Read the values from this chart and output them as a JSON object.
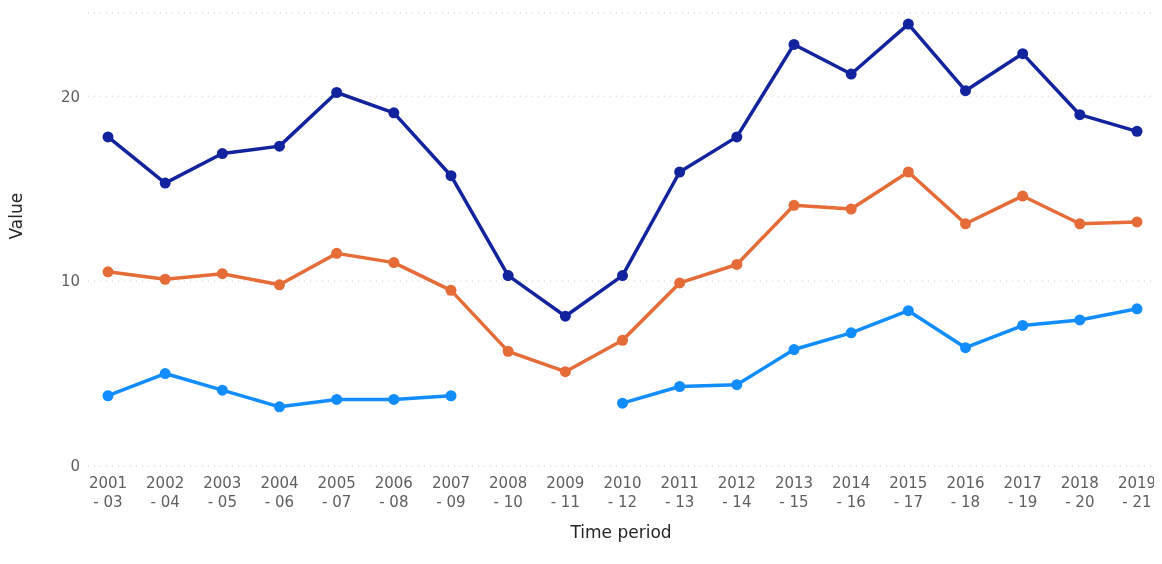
{
  "chart_data": {
    "type": "line",
    "xlabel": "Time period",
    "ylabel": "Value",
    "categories": [
      "2001 - 03",
      "2002 - 04",
      "2003 - 05",
      "2004 - 06",
      "2005 - 07",
      "2006 - 08",
      "2007 - 09",
      "2008 - 10",
      "2009 - 11",
      "2010 - 12",
      "2011 - 13",
      "2012 - 14",
      "2013 - 15",
      "2014 - 16",
      "2015 - 17",
      "2016 - 18",
      "2017 - 19",
      "2018 - 20",
      "2019 - 21"
    ],
    "series": [
      {
        "color": "#12239e",
        "values": [
          17.8,
          15.3,
          16.9,
          17.3,
          20.2,
          19.1,
          15.7,
          10.3,
          8.1,
          10.3,
          15.9,
          17.8,
          22.8,
          21.2,
          23.9,
          20.3,
          22.3,
          19.0,
          18.1
        ]
      },
      {
        "color": "#e66c37",
        "values": [
          10.5,
          10.1,
          10.4,
          9.8,
          11.5,
          11.0,
          9.5,
          6.2,
          5.1,
          6.8,
          9.9,
          10.9,
          14.1,
          13.9,
          15.9,
          13.1,
          14.6,
          13.1,
          13.2
        ]
      },
      {
        "color": "#118dff",
        "values": [
          3.8,
          5.0,
          4.1,
          3.2,
          3.6,
          3.6,
          3.8,
          null,
          null,
          3.4,
          4.3,
          4.4,
          6.3,
          7.2,
          8.4,
          6.4,
          7.6,
          7.9,
          8.5
        ]
      }
    ],
    "ylim": [
      0,
      24.5
    ],
    "yticks": [
      0,
      10,
      20
    ],
    "grid": "y",
    "marker": "circle",
    "line_style": "solid"
  }
}
